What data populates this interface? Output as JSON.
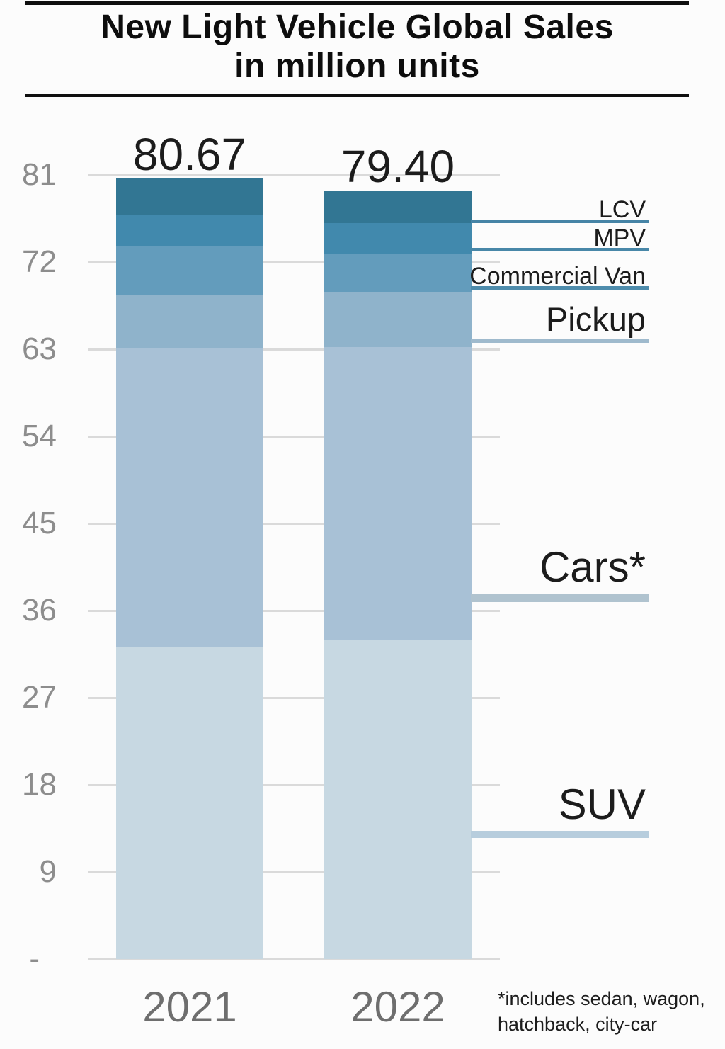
{
  "header": {
    "title_line1": "New Light Vehicle Global Sales",
    "title_line2": "in million units"
  },
  "chart_data": {
    "type": "bar",
    "stacked": true,
    "title": "New Light Vehicle Global Sales in million units",
    "unit": "million units",
    "categories": [
      "2021",
      "2022"
    ],
    "totals": [
      "80.67",
      "79.40"
    ],
    "series_bottom_to_top": [
      {
        "name": "SUV",
        "values": [
          32.2,
          32.9
        ],
        "color": "#c7d8e2"
      },
      {
        "name": "Cars*",
        "values": [
          30.84,
          30.3
        ],
        "color": "#a8c1d6"
      },
      {
        "name": "Pickup",
        "values": [
          5.58,
          5.7
        ],
        "color": "#8fb3cb"
      },
      {
        "name": "Commercial Van",
        "values": [
          5.05,
          4.0
        ],
        "color": "#639cbc"
      },
      {
        "name": "MPV",
        "values": [
          3.2,
          3.1
        ],
        "color": "#4189ad"
      },
      {
        "name": "LCV",
        "values": [
          3.8,
          3.4
        ],
        "color": "#327693"
      }
    ],
    "y_axis": {
      "tick_labels": [
        "81",
        "72",
        "63",
        "54",
        "45",
        "36",
        "27",
        "18",
        "9",
        "-"
      ],
      "tick_values": [
        81,
        72,
        63,
        54,
        45,
        36,
        27,
        18,
        9,
        0
      ],
      "ylim": [
        0,
        81
      ],
      "grid": true
    },
    "legend_position": "right-callouts",
    "annotations": [
      {
        "label": "LCV",
        "line_color": "#4684a6"
      },
      {
        "label": "MPV",
        "line_color": "#4887a8"
      },
      {
        "label": "Commercial Van",
        "line_color": "#4e8cac"
      },
      {
        "label": "Pickup",
        "line_color": "#9fbacd"
      },
      {
        "label": "Cars*",
        "line_color": "#b0c3cf"
      },
      {
        "label": "SUV",
        "line_color": "#b7cddd"
      }
    ],
    "footnote_line1": "*includes sedan, wagon,",
    "footnote_line2": "hatchback, city-car"
  }
}
